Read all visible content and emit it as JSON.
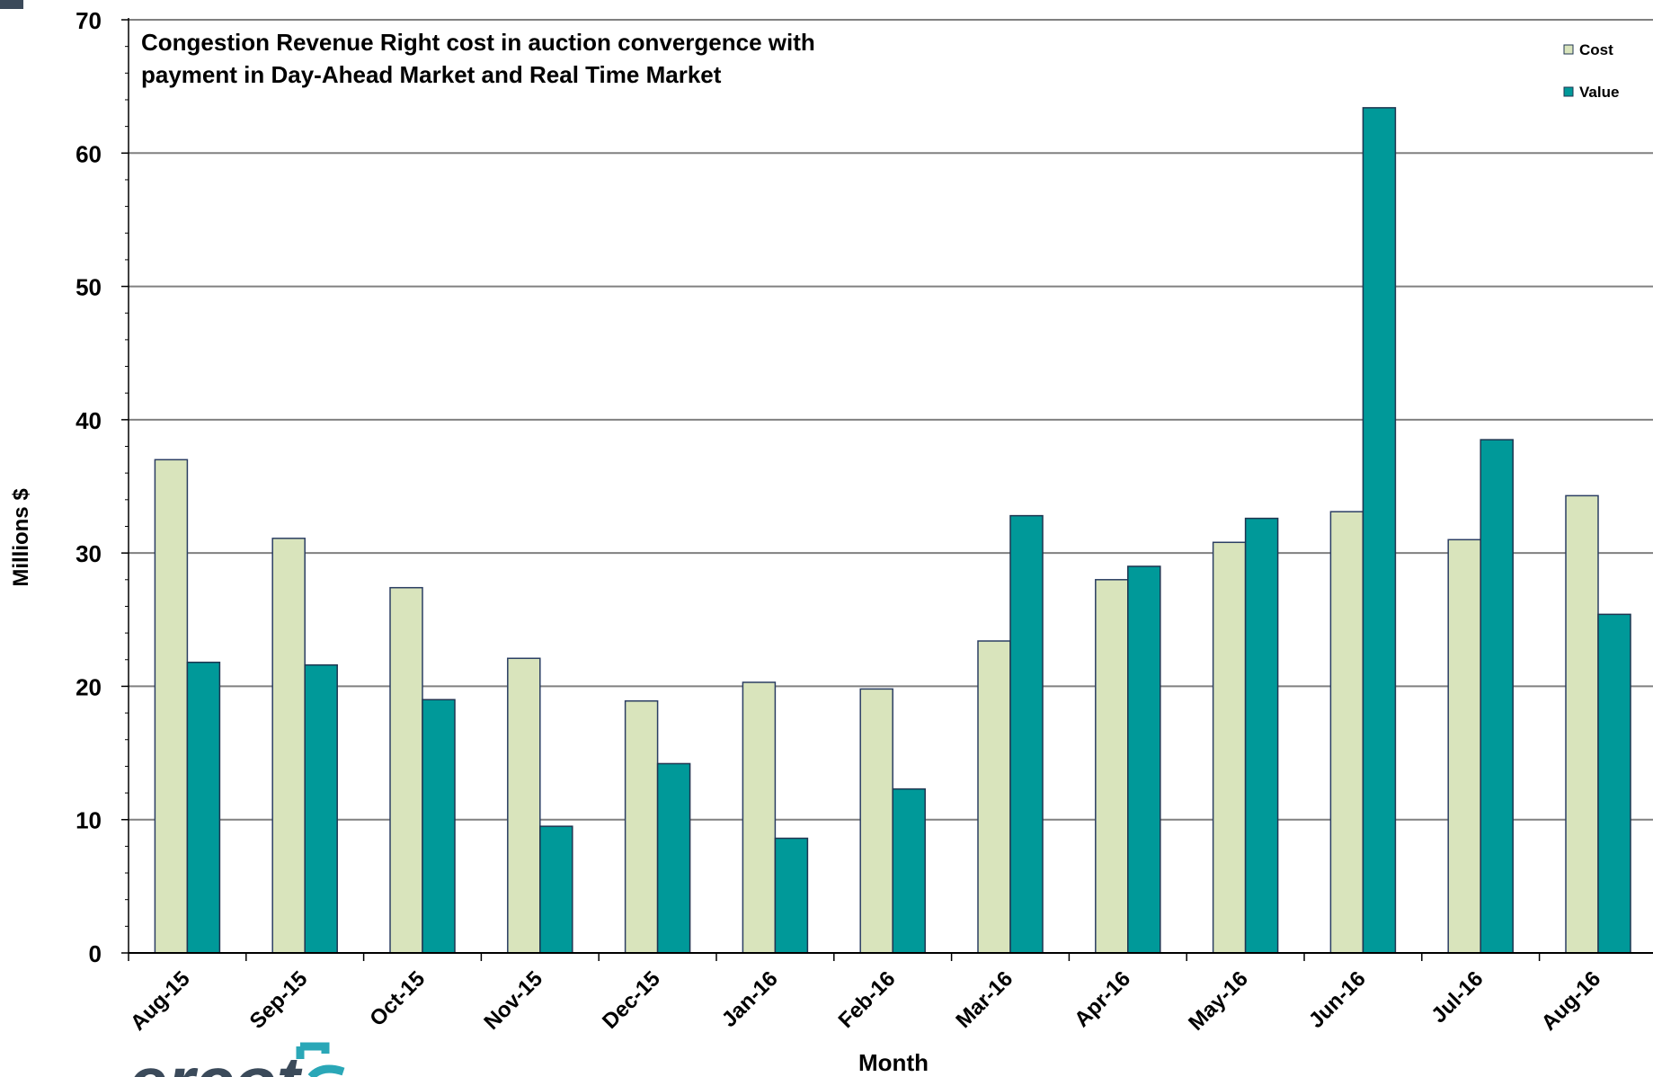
{
  "chart_data": {
    "type": "bar",
    "title": "Congestion Revenue Right cost in auction convergence with payment in Day-Ahead Market and Real Time Market",
    "title_lines": [
      "Congestion Revenue Right cost in auction convergence with",
      "payment in Day-Ahead Market and Real Time Market"
    ],
    "xlabel": "Month",
    "ylabel": "Millions $",
    "ylim": [
      0,
      70
    ],
    "yticks": [
      0,
      10,
      20,
      30,
      40,
      50,
      60,
      70
    ],
    "grid": true,
    "legend_position": "top-right",
    "categories": [
      "Aug-15",
      "Sep-15",
      "Oct-15",
      "Nov-15",
      "Dec-15",
      "Jan-16",
      "Feb-16",
      "Mar-16",
      "Apr-16",
      "May-16",
      "Jun-16",
      "Jul-16",
      "Aug-16"
    ],
    "series": [
      {
        "name": "Cost",
        "color": "#d9e4bc",
        "values": [
          37.0,
          31.1,
          27.4,
          22.1,
          18.9,
          20.3,
          19.8,
          23.4,
          28.0,
          30.8,
          33.1,
          31.0,
          34.3
        ]
      },
      {
        "name": "Value",
        "color": "#009999",
        "values": [
          21.8,
          21.6,
          19.0,
          9.5,
          14.2,
          8.6,
          12.3,
          32.8,
          29.0,
          32.6,
          63.4,
          38.5,
          25.4
        ]
      }
    ]
  },
  "logo": {
    "text": "ercot"
  }
}
